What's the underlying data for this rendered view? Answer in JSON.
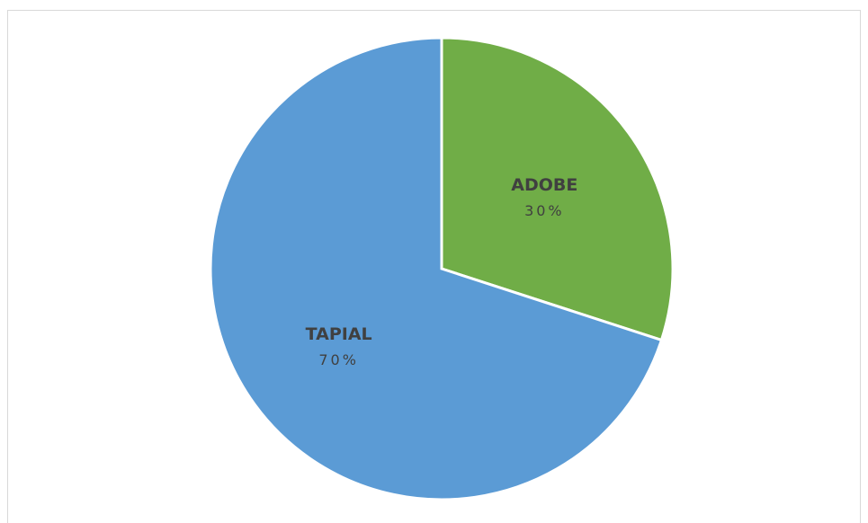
{
  "chart_data": {
    "type": "pie",
    "title": "",
    "slices": [
      {
        "label": "ADOBE",
        "value": 30,
        "value_label": "30%",
        "color": "#70ad47"
      },
      {
        "label": "TAPIAL",
        "value": 70,
        "value_label": "70%",
        "color": "#5b9bd5"
      }
    ],
    "start_angle_deg": 0,
    "direction": "clockwise",
    "legend": "none",
    "data_labels": "inside"
  }
}
